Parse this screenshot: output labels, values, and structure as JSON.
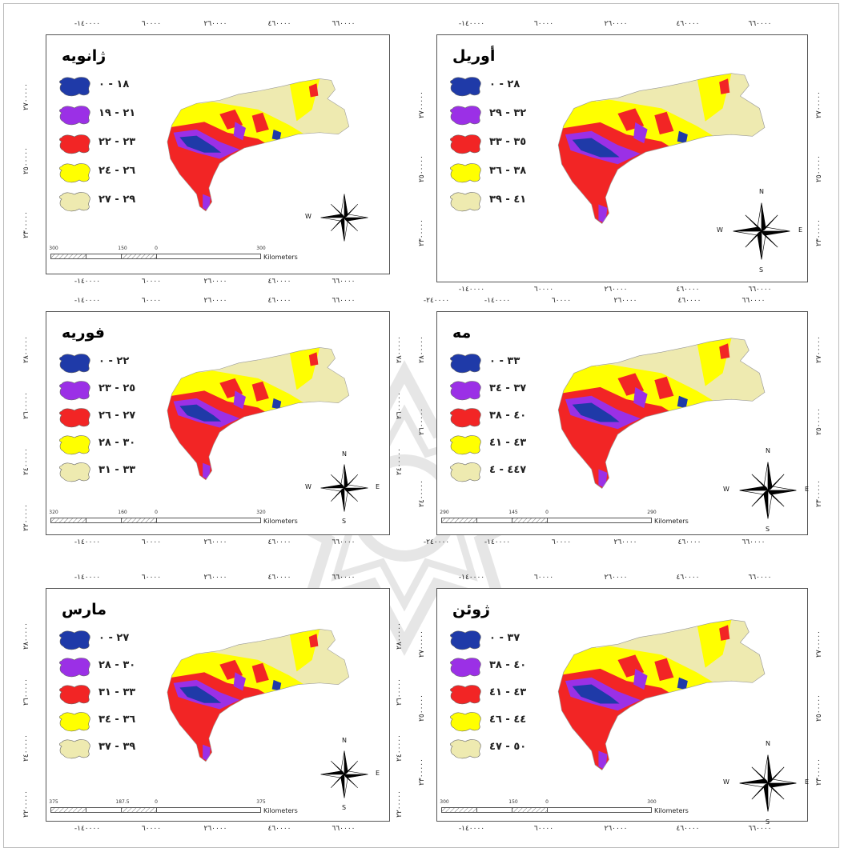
{
  "colors": {
    "class1": "#1f3aa8",
    "class2": "#9b30e6",
    "class3": "#f22525",
    "class4": "#ffff00",
    "class5": "#eeeab0",
    "frame": "#555555"
  },
  "maps": [
    {
      "title": "ژانویه",
      "classes": [
        "۰ - ۱۸",
        "۱۹ - ۲۱",
        "۲۲ - ۲۳",
        "۲٤ - ۲٦",
        "۲۷ - ۲۹"
      ],
      "x_ticks_top": [
        "-۱٤۰۰۰۰",
        "٦۰۰۰۰",
        "۲٦۰۰۰۰",
        "٤٦۰۰۰۰",
        "٦٦۰۰۰۰"
      ],
      "x_ticks_bottom": [
        "-۱٤۰۰۰۰",
        "٦۰۰۰۰",
        "۲٦۰۰۰۰",
        "٤٦۰۰۰۰",
        "٦٦۰۰۰۰"
      ],
      "y_ticks_left": [
        "۲۷۰۰۰۰۰",
        "۲٥۰۰۰۰۰",
        "۲۳۰۰۰۰۰"
      ],
      "y_ticks_right": [],
      "scale": [
        "300",
        "150",
        "0",
        "300"
      ],
      "scale_unit": "Kilometers",
      "compass": {
        "n": "",
        "s": "",
        "e": "",
        "w": "W"
      }
    },
    {
      "title": "أوريل",
      "classes": [
        "۰ - ۲۸",
        "۲۹ - ۳۲",
        "۳۳ - ۳٥",
        "۳٦ - ۳۸",
        "۳۹ - ٤۱"
      ],
      "x_ticks_top": [
        "-۱٤۰۰۰۰",
        "٦۰۰۰۰",
        "۲٦۰۰۰۰",
        "٤٦۰۰۰۰",
        "٦٦۰۰۰۰"
      ],
      "x_ticks_bottom": [
        "-۱٤۰۰۰۰",
        "٦۰۰۰۰",
        "۲٦۰۰۰۰",
        "٤٦۰۰۰۰",
        "٦٦۰۰۰۰"
      ],
      "y_ticks_left": [
        "۲۷۰۰۰۰۰",
        "۲٥۰۰۰۰۰",
        "۲۳۰۰۰۰۰"
      ],
      "y_ticks_right": [
        "۲۷۰۰۰۰۰",
        "۲٥۰۰۰۰۰",
        "۲۳۰۰۰۰۰"
      ],
      "scale": [],
      "scale_unit": "",
      "compass": {
        "n": "N",
        "s": "S",
        "e": "E",
        "w": "W"
      }
    },
    {
      "title": "فوريه",
      "classes": [
        "۰ - ۲۲",
        "۲۳ - ۲٥",
        "۲٦ - ۲۷",
        "۲۸ - ۳۰",
        "۳۱ - ۳۳"
      ],
      "x_ticks_top": [
        "-۱٤۰۰۰۰",
        "٦۰۰۰۰",
        "۲٦۰۰۰۰",
        "٤٦۰۰۰۰",
        "٦٦۰۰۰۰"
      ],
      "x_ticks_bottom": [
        "-۱٤۰۰۰۰",
        "٦۰۰۰۰",
        "۲٦۰۰۰۰",
        "٤٦۰۰۰۰",
        "٦٦۰۰۰۰"
      ],
      "y_ticks_left": [
        "۲۸۰۰۰۰۰",
        "۲٦۰۰۰۰۰",
        "۲٤۰۰۰۰۰",
        "۲۲۰۰۰۰۰"
      ],
      "y_ticks_right": [
        "۲۸۰۰۰۰۰",
        "۲٦۰۰۰۰۰",
        "۲٤۰۰۰۰۰"
      ],
      "scale": [
        "320",
        "160",
        "0",
        "320"
      ],
      "scale_unit": "Kilometers",
      "compass": {
        "n": "N",
        "s": "S",
        "e": "E",
        "w": "W"
      }
    },
    {
      "title": "مه",
      "classes": [
        "۰ - ۳۳",
        "۳٤ - ۳۷",
        "۳۸ - ٤۰",
        "٤۱ - ٤۳",
        "٤٤ - ٤۷"
      ],
      "x_ticks_top": [
        "-۲٤۰۰۰۰",
        "-۱٤۰۰۰۰",
        "٦۰۰۰۰",
        "۲٦۰۰۰۰",
        "٤٦۰۰۰۰",
        "٦٦۰۰۰۰"
      ],
      "x_ticks_bottom": [
        "-۲٤۰۰۰۰",
        "-۱٤۰۰۰۰",
        "٦۰۰۰۰",
        "۲٦۰۰۰۰",
        "٤٦۰۰۰۰",
        "٦٦۰۰۰۰"
      ],
      "y_ticks_left": [
        "۲۸۰۰۰۰۰",
        "۲٦۰۰۰۰۰",
        "۲٤۰۰۰۰۰"
      ],
      "y_ticks_right": [
        "۲۷۰۰۰۰۰",
        "۲٥۰۰۰۰۰",
        "۲۳۰۰۰۰۰"
      ],
      "scale": [
        "290",
        "145",
        "0",
        "290"
      ],
      "scale_unit": "Kilometers",
      "compass": {
        "n": "N",
        "s": "S",
        "e": "E",
        "w": "W"
      }
    },
    {
      "title": "مارس",
      "classes": [
        "۰ - ۲۷",
        "۲۸ - ۳۰",
        "۳۱ - ۳۳",
        "۳٤ - ۳٦",
        "۳۷ - ۳۹"
      ],
      "x_ticks_top": [
        "-۱٤۰۰۰۰",
        "٦۰۰۰۰",
        "۲٦۰۰۰۰",
        "٤٦۰۰۰۰",
        "٦٦۰۰۰۰"
      ],
      "x_ticks_bottom": [
        "-۱٤۰۰۰۰",
        "٦۰۰۰۰",
        "۲٦۰۰۰۰",
        "٤٦۰۰۰۰",
        "٦٦۰۰۰۰"
      ],
      "y_ticks_left": [
        "۲۸۰۰۰۰۰",
        "۲٦۰۰۰۰۰",
        "۲٤۰۰۰۰۰",
        "۲۲۰۰۰۰۰"
      ],
      "y_ticks_right": [
        "۲۸۰۰۰۰۰",
        "۲٦۰۰۰۰۰",
        "۲٤۰۰۰۰۰",
        "۲۲۰۰۰۰۰"
      ],
      "scale": [
        "375",
        "187.5",
        "0",
        "375"
      ],
      "scale_unit": "Kilometers",
      "compass": {
        "n": "N",
        "s": "S",
        "e": "E",
        "w": ""
      }
    },
    {
      "title": "ژوئن",
      "classes": [
        "۰ - ۳۷",
        "۳۸ - ٤۰",
        "٤۱ - ٤۳",
        "٤٤ - ٤٦",
        "٤۷ - ٥۰"
      ],
      "x_ticks_top": [
        "-۱٤۰۰۰۰",
        "٦۰۰۰۰",
        "۲٦۰۰۰۰",
        "٤٦۰۰۰۰",
        "٦٦۰۰۰۰"
      ],
      "x_ticks_bottom": [
        "-۱٤۰۰۰۰",
        "٦۰۰۰۰",
        "۲٦۰۰۰۰",
        "٤٦۰۰۰۰",
        "٦٦۰۰۰۰"
      ],
      "y_ticks_left": [
        "۲۷۰۰۰۰۰",
        "۲٥۰۰۰۰۰",
        "۲۳۰۰۰۰۰"
      ],
      "y_ticks_right": [
        "۲۷۰۰۰۰۰",
        "۲٥۰۰۰۰۰",
        "۲۳۰۰۰۰۰"
      ],
      "scale": [
        "300",
        "150",
        "0",
        "300"
      ],
      "scale_unit": "Kilometers",
      "compass": {
        "n": "N",
        "s": "S",
        "e": "E",
        "w": "W"
      }
    }
  ]
}
